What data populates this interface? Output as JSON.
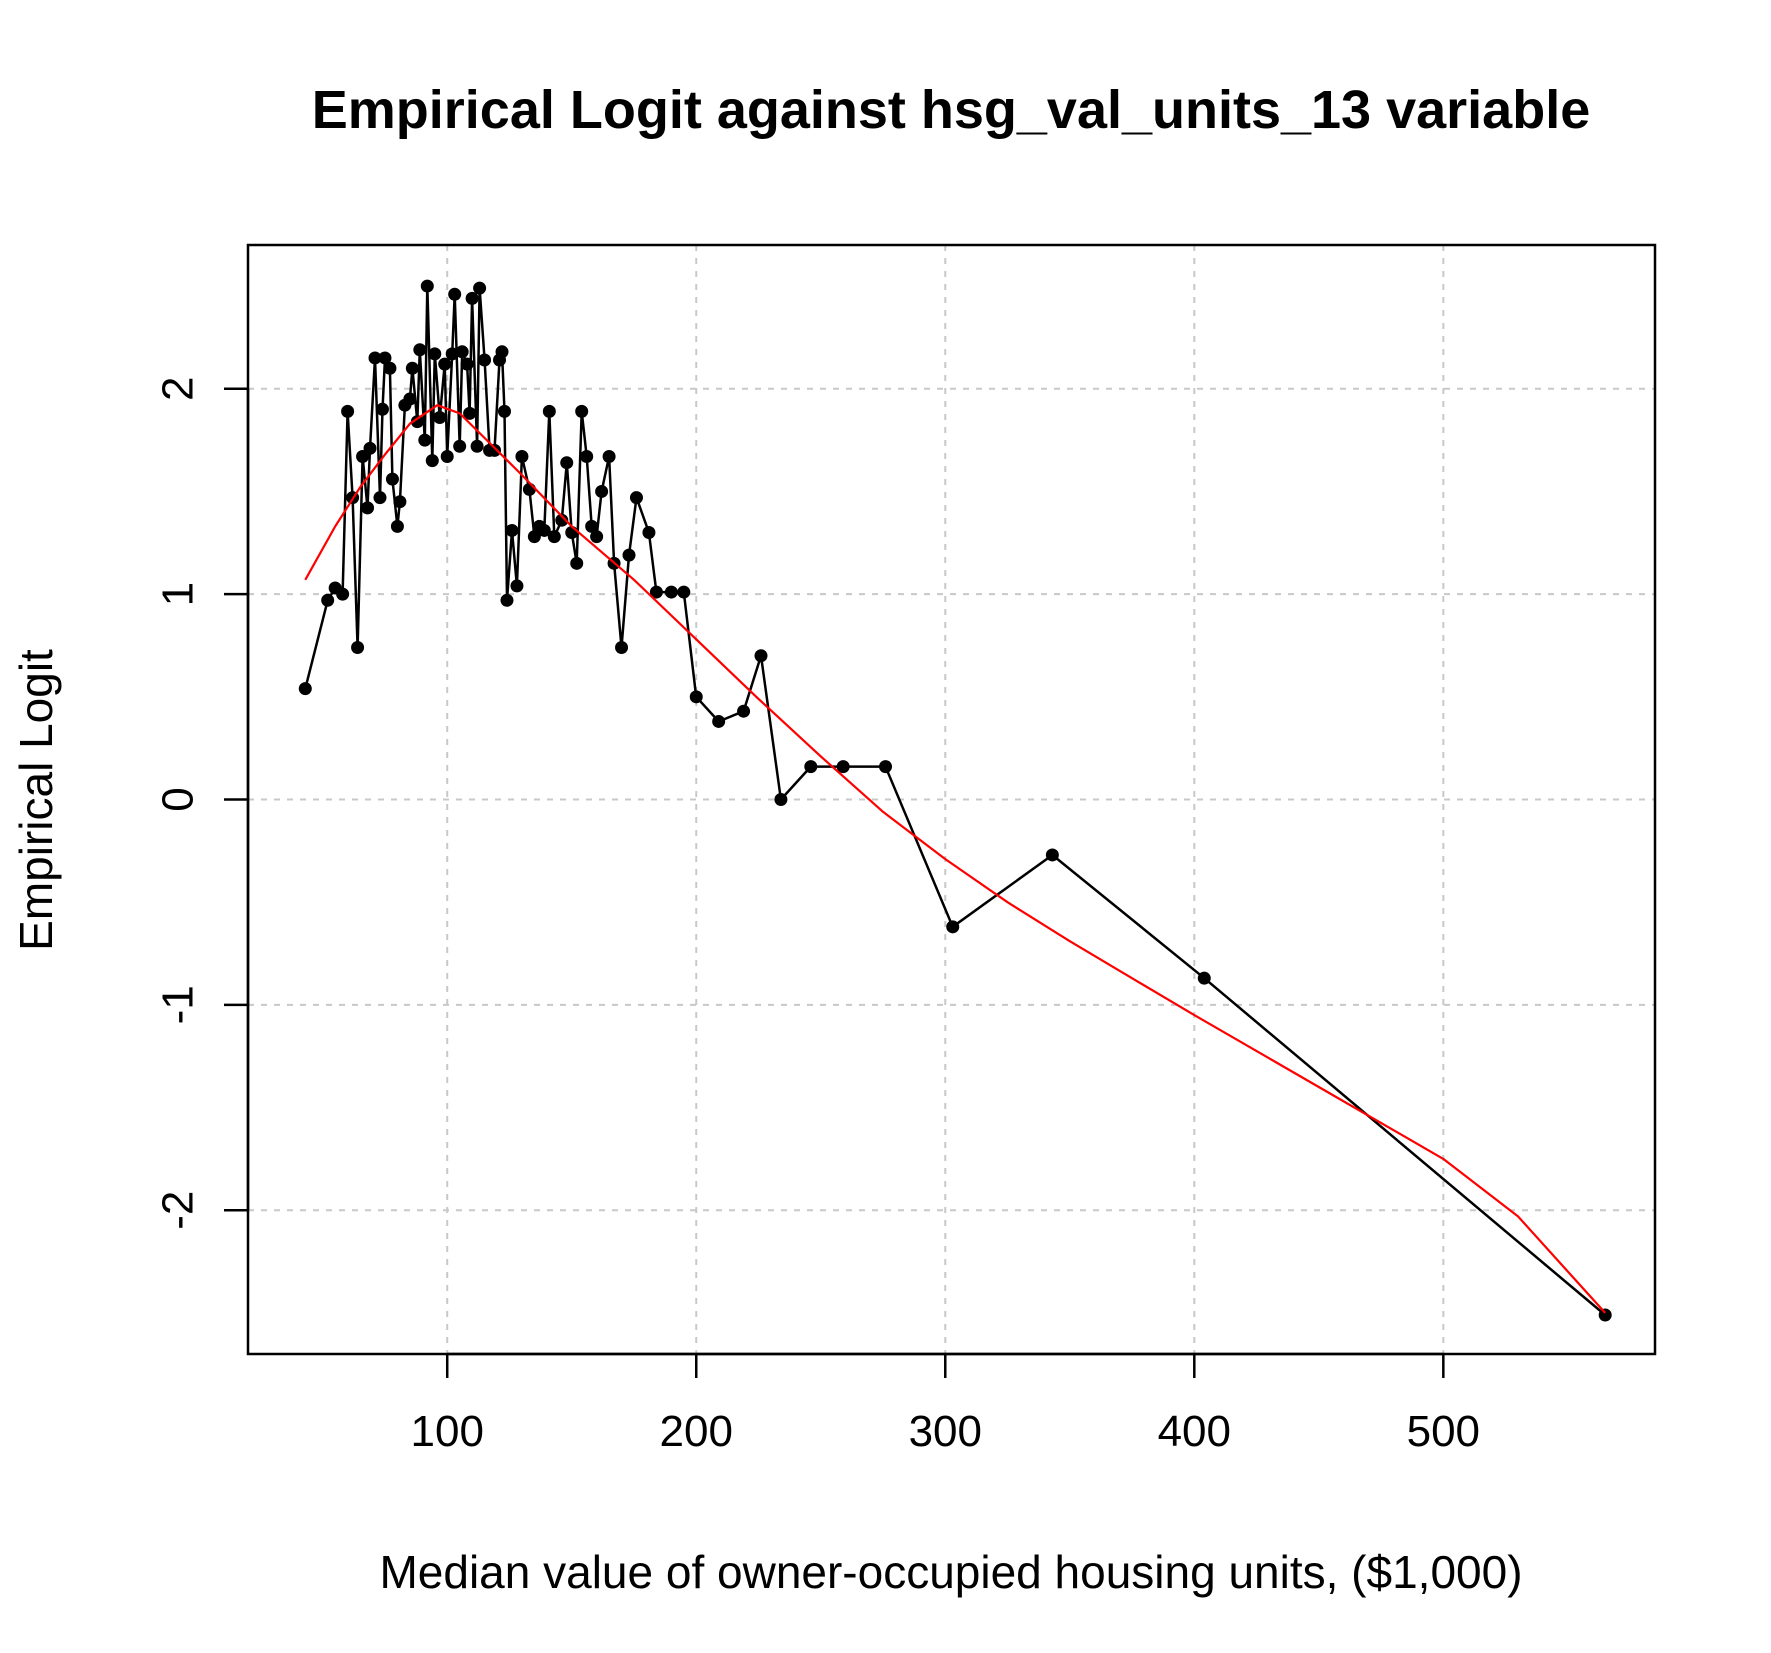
{
  "chart_data": {
    "type": "line",
    "title": "Empirical Logit against hsg_val_units_13 variable",
    "xlabel": "Median value of owner-occupied housing units, ($1,000)",
    "ylabel": "Empirical Logit",
    "xlim": [
      20,
      585
    ],
    "ylim": [
      -2.7,
      2.7
    ],
    "xticks": [
      100,
      200,
      300,
      400,
      500
    ],
    "yticks": [
      -2,
      -1,
      0,
      1,
      2
    ],
    "grid": true,
    "series": [
      {
        "color": "#000000",
        "style": "line+points",
        "points": [
          [
            43,
            0.54
          ],
          [
            52,
            0.97
          ],
          [
            55,
            1.03
          ],
          [
            58,
            1.0
          ],
          [
            60,
            1.89
          ],
          [
            62,
            1.47
          ],
          [
            64,
            0.74
          ],
          [
            66,
            1.67
          ],
          [
            68,
            1.42
          ],
          [
            69,
            1.71
          ],
          [
            71,
            2.15
          ],
          [
            73,
            1.47
          ],
          [
            74,
            1.9
          ],
          [
            75,
            2.15
          ],
          [
            77,
            2.1
          ],
          [
            78,
            1.56
          ],
          [
            80,
            1.33
          ],
          [
            81,
            1.45
          ],
          [
            83,
            1.92
          ],
          [
            85,
            1.95
          ],
          [
            86,
            2.1
          ],
          [
            88,
            1.84
          ],
          [
            89,
            2.19
          ],
          [
            91,
            1.75
          ],
          [
            92,
            2.5
          ],
          [
            94,
            1.65
          ],
          [
            95,
            2.17
          ],
          [
            97,
            1.86
          ],
          [
            99,
            2.12
          ],
          [
            100,
            1.67
          ],
          [
            102,
            2.17
          ],
          [
            103,
            2.46
          ],
          [
            105,
            1.72
          ],
          [
            106,
            2.18
          ],
          [
            108,
            2.12
          ],
          [
            109,
            1.88
          ],
          [
            110,
            2.44
          ],
          [
            112,
            1.72
          ],
          [
            113,
            2.49
          ],
          [
            115,
            2.14
          ],
          [
            117,
            1.7
          ],
          [
            119,
            1.7
          ],
          [
            121,
            2.14
          ],
          [
            122,
            2.18
          ],
          [
            123,
            1.89
          ],
          [
            124,
            0.97
          ],
          [
            126,
            1.31
          ],
          [
            128,
            1.04
          ],
          [
            130,
            1.67
          ],
          [
            133,
            1.51
          ],
          [
            135,
            1.28
          ],
          [
            137,
            1.33
          ],
          [
            139,
            1.31
          ],
          [
            141,
            1.89
          ],
          [
            143,
            1.28
          ],
          [
            146,
            1.36
          ],
          [
            148,
            1.64
          ],
          [
            150,
            1.3
          ],
          [
            152,
            1.15
          ],
          [
            154,
            1.89
          ],
          [
            156,
            1.67
          ],
          [
            158,
            1.33
          ],
          [
            160,
            1.28
          ],
          [
            162,
            1.5
          ],
          [
            165,
            1.67
          ],
          [
            167,
            1.15
          ],
          [
            170,
            0.74
          ],
          [
            173,
            1.19
          ],
          [
            176,
            1.47
          ],
          [
            181,
            1.3
          ],
          [
            184,
            1.01
          ],
          [
            190,
            1.01
          ],
          [
            195,
            1.01
          ],
          [
            200,
            0.5
          ],
          [
            209,
            0.38
          ],
          [
            219,
            0.43
          ],
          [
            226,
            0.7
          ],
          [
            234,
            0.0
          ],
          [
            246,
            0.16
          ],
          [
            259,
            0.16
          ],
          [
            276,
            0.16
          ],
          [
            303,
            -0.62
          ],
          [
            343,
            -0.27
          ],
          [
            404,
            -0.87
          ],
          [
            565,
            -2.51
          ]
        ]
      },
      {
        "color": "#ff0000",
        "style": "line",
        "points": [
          [
            43,
            1.07
          ],
          [
            55,
            1.33
          ],
          [
            65,
            1.52
          ],
          [
            75,
            1.68
          ],
          [
            85,
            1.83
          ],
          [
            96,
            1.92
          ],
          [
            105,
            1.88
          ],
          [
            115,
            1.76
          ],
          [
            130,
            1.58
          ],
          [
            150,
            1.33
          ],
          [
            175,
            1.07
          ],
          [
            200,
            0.78
          ],
          [
            225,
            0.49
          ],
          [
            250,
            0.21
          ],
          [
            275,
            -0.06
          ],
          [
            300,
            -0.29
          ],
          [
            325,
            -0.5
          ],
          [
            350,
            -0.69
          ],
          [
            375,
            -0.87
          ],
          [
            400,
            -1.05
          ],
          [
            450,
            -1.4
          ],
          [
            500,
            -1.75
          ],
          [
            530,
            -2.03
          ],
          [
            565,
            -2.5
          ]
        ]
      }
    ]
  }
}
